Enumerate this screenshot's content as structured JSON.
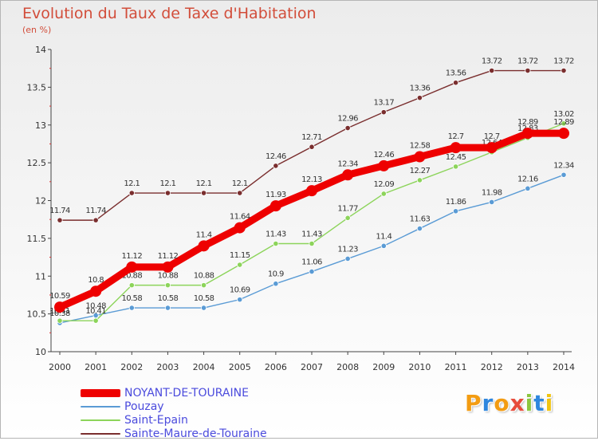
{
  "header": {
    "title": "Evolution du Taux de Taxe d'Habitation",
    "unit": "(en %)"
  },
  "logo": {
    "text": "Proxiti",
    "colors": [
      "#f39c12",
      "#2e86de",
      "#f39c12",
      "#e74c3c",
      "#8cc63f",
      "#2e86de",
      "#f1c40f"
    ]
  },
  "chart_data": {
    "type": "line",
    "x": [
      2000,
      2001,
      2002,
      2003,
      2004,
      2005,
      2006,
      2007,
      2008,
      2009,
      2010,
      2011,
      2012,
      2013,
      2014
    ],
    "ylim": [
      10,
      14
    ],
    "yticks": [
      10,
      10.5,
      11,
      11.5,
      12,
      12.5,
      13,
      13.5,
      14
    ],
    "ytick_labels": [
      "10",
      "10.5",
      "11",
      "11.5",
      "12",
      "12.5",
      "13",
      "13.5",
      "14"
    ],
    "grid": false,
    "legend_position": "bottom-left",
    "series": [
      {
        "name": "Sainte-Maure-de-Touraine",
        "color": "#7a2e2e",
        "values": [
          11.74,
          11.74,
          12.1,
          12.1,
          12.1,
          12.1,
          12.46,
          12.71,
          12.96,
          13.17,
          13.36,
          13.56,
          13.72,
          13.72,
          13.72
        ],
        "labels": [
          "11.74",
          "11.74",
          "12.1",
          "12.1",
          "12.1",
          "12.1",
          "12.46",
          "12.71",
          "12.96",
          "13.17",
          "13.36",
          "13.56",
          "13.72",
          "13.72",
          "13.72"
        ]
      },
      {
        "name": "Pouzay",
        "color": "#5a9bd5",
        "values": [
          10.38,
          10.48,
          10.58,
          10.58,
          10.58,
          10.69,
          10.9,
          11.06,
          11.23,
          11.4,
          11.63,
          11.86,
          11.98,
          12.16,
          12.34
        ],
        "labels": [
          "10.38",
          "10.48",
          "10.58",
          "10.58",
          "10.58",
          "10.69",
          "10.9",
          "11.06",
          "11.23",
          "11.4",
          "11.63",
          "11.86",
          "11.98",
          "12.16",
          "12.34"
        ]
      },
      {
        "name": "Saint-Epain",
        "color": "#8cd45a",
        "values": [
          10.41,
          10.41,
          10.88,
          10.88,
          10.88,
          11.15,
          11.43,
          11.43,
          11.77,
          12.09,
          12.27,
          12.45,
          12.64,
          12.83,
          13.02
        ],
        "labels": [
          "10.41",
          "10.41",
          "10.88",
          "10.88",
          "10.88",
          "11.15",
          "11.43",
          "11.43",
          "11.77",
          "12.09",
          "12.27",
          "12.45",
          "12.64",
          "12.83",
          "13.02"
        ]
      },
      {
        "name": "NOYANT-DE-TOURAINE",
        "color": "#ee0000",
        "values": [
          10.59,
          10.8,
          11.12,
          11.12,
          11.4,
          11.64,
          11.93,
          12.13,
          12.34,
          12.46,
          12.58,
          12.7,
          12.7,
          12.89,
          12.89
        ],
        "labels": [
          "10.59",
          "10.8",
          "11.12",
          "11.12",
          "11.4",
          "11.64",
          "11.93",
          "12.13",
          "12.34",
          "12.46",
          "12.58",
          "12.7",
          "12.7",
          "12.89",
          "12.89"
        ]
      }
    ],
    "legend_order": [
      "NOYANT-DE-TOURAINE",
      "Pouzay",
      "Saint-Epain",
      "Sainte-Maure-de-Touraine"
    ]
  }
}
